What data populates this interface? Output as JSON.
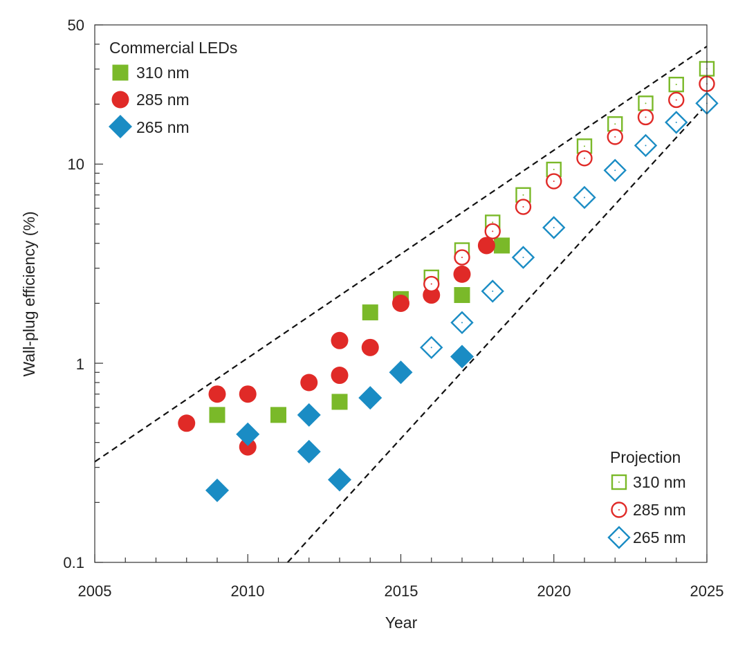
{
  "chart_data": {
    "type": "scatter",
    "xlabel": "Year",
    "ylabel": "Wall-plug efficiency (%)",
    "xlim": [
      2005,
      2025
    ],
    "ylim": [
      0.1,
      50
    ],
    "yscale": "log",
    "x_ticks": [
      "2005",
      "2010",
      "2015",
      "2020",
      "2025"
    ],
    "y_ticks": [
      "0.1",
      "1",
      "10",
      "50"
    ],
    "grid": false,
    "colors": {
      "310 nm": "#7ab929",
      "285 nm": "#e02a27",
      "265 nm": "#1a8cc4",
      "guide": "#111111"
    },
    "legends": [
      {
        "title": "Commercial LEDs",
        "placement": "top-left",
        "entries": [
          "310 nm",
          "285 nm",
          "265 nm"
        ]
      },
      {
        "title": "Projection",
        "placement": "bottom-right",
        "entries": [
          "310 nm",
          "285 nm",
          "265 nm"
        ]
      }
    ],
    "series": [
      {
        "name": "310 nm",
        "group": "Commercial LEDs",
        "marker": "square-filled",
        "points": [
          [
            2009,
            0.55
          ],
          [
            2011,
            0.55
          ],
          [
            2013,
            0.64
          ],
          [
            2014,
            1.8
          ],
          [
            2015,
            2.1
          ],
          [
            2017,
            2.2
          ],
          [
            2018.3,
            3.9
          ]
        ]
      },
      {
        "name": "285 nm",
        "group": "Commercial LEDs",
        "marker": "circle-filled",
        "points": [
          [
            2008,
            0.5
          ],
          [
            2009,
            0.7
          ],
          [
            2010,
            0.7
          ],
          [
            2010,
            0.38
          ],
          [
            2012,
            0.8
          ],
          [
            2013,
            1.3
          ],
          [
            2013,
            0.87
          ],
          [
            2014,
            1.2
          ],
          [
            2015,
            2.0
          ],
          [
            2016,
            2.2
          ],
          [
            2017,
            2.8
          ],
          [
            2017.8,
            3.9
          ]
        ]
      },
      {
        "name": "265 nm",
        "group": "Commercial LEDs",
        "marker": "diamond-filled",
        "points": [
          [
            2009,
            0.23
          ],
          [
            2010,
            0.44
          ],
          [
            2012,
            0.55
          ],
          [
            2012,
            0.36
          ],
          [
            2013,
            0.26
          ],
          [
            2014,
            0.67
          ],
          [
            2015,
            0.9
          ],
          [
            2017,
            1.08
          ]
        ]
      },
      {
        "name": "310 nm",
        "group": "Projection",
        "marker": "square-open",
        "points": [
          [
            2016,
            2.7
          ],
          [
            2017,
            3.7
          ],
          [
            2018,
            5.1
          ],
          [
            2019,
            7.0
          ],
          [
            2020,
            9.4
          ],
          [
            2021,
            12.3
          ],
          [
            2022,
            15.9
          ],
          [
            2023,
            20.2
          ],
          [
            2024,
            25.1
          ],
          [
            2025,
            30.1
          ]
        ]
      },
      {
        "name": "285 nm",
        "group": "Projection",
        "marker": "circle-open",
        "points": [
          [
            2016,
            2.5
          ],
          [
            2017,
            3.4
          ],
          [
            2018,
            4.6
          ],
          [
            2019,
            6.1
          ],
          [
            2020,
            8.2
          ],
          [
            2021,
            10.7
          ],
          [
            2022,
            13.7
          ],
          [
            2023,
            17.2
          ],
          [
            2024,
            21
          ],
          [
            2025,
            25.3
          ]
        ]
      },
      {
        "name": "265 nm",
        "group": "Projection",
        "marker": "diamond-open",
        "points": [
          [
            2016,
            1.2
          ],
          [
            2017,
            1.6
          ],
          [
            2018,
            2.3
          ],
          [
            2019,
            3.4
          ],
          [
            2020,
            4.8
          ],
          [
            2021,
            6.8
          ],
          [
            2022,
            9.3
          ],
          [
            2023,
            12.4
          ],
          [
            2024,
            16.2
          ],
          [
            2025,
            20.2
          ]
        ]
      }
    ],
    "guide_lines": [
      {
        "style": "dashed",
        "points": [
          [
            2005,
            0.32
          ],
          [
            2025,
            39
          ]
        ]
      },
      {
        "style": "dashed",
        "points": [
          [
            2011.3,
            0.1
          ],
          [
            2025,
            20
          ]
        ]
      }
    ]
  }
}
